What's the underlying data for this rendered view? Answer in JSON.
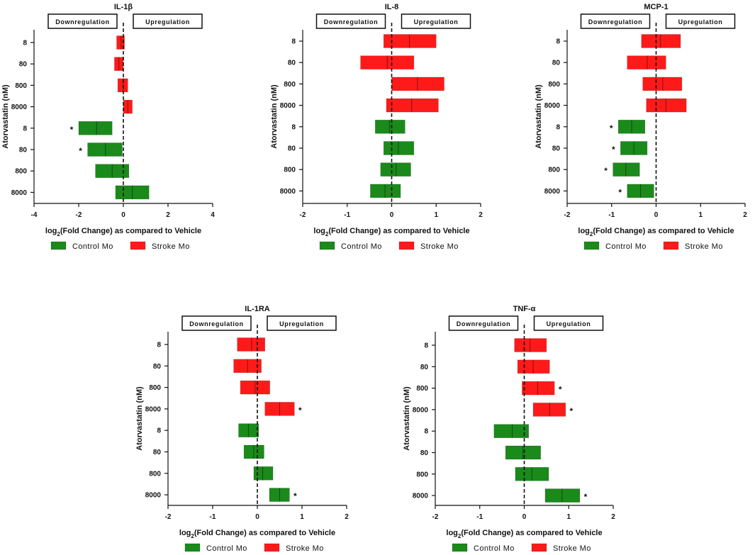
{
  "colors": {
    "control": "#1a8a1a",
    "stroke": "#ff1a1a",
    "axis": "#111111"
  },
  "legend": {
    "control_label": "Control Mo",
    "stroke_label": "Stroke Mo"
  },
  "labels": {
    "ylabel": "Atorvastatin (nM)",
    "xlabel_prefix": "log",
    "xlabel_sub": "2",
    "xlabel_rest": "(Fold Change) as compared to Vehicle",
    "downregulation": "Downregulation",
    "upregulation": "Upregulation"
  },
  "chart_data": [
    {
      "type": "floating-bar",
      "title": "IL-1β",
      "xlim": [
        -4,
        4
      ],
      "xticks": [
        "-4",
        "-2",
        "0",
        "2",
        "4"
      ],
      "xtick_values": [
        -4,
        -2,
        0,
        2,
        4
      ],
      "categories": [
        "8",
        "80",
        "800",
        "8000",
        "8",
        "80",
        "800",
        "8000"
      ],
      "series": [
        {
          "name": "Stroke Mo",
          "rows": [
            {
              "dose": "8",
              "min": -0.3,
              "mean": -0.1,
              "max": 0.05,
              "sig": false
            },
            {
              "dose": "80",
              "min": -0.4,
              "mean": -0.2,
              "max": 0.0,
              "sig": false
            },
            {
              "dose": "800",
              "min": -0.25,
              "mean": 0.0,
              "max": 0.2,
              "sig": false
            },
            {
              "dose": "8000",
              "min": 0.0,
              "mean": 0.2,
              "max": 0.4,
              "sig": false
            }
          ]
        },
        {
          "name": "Control Mo",
          "rows": [
            {
              "dose": "8",
              "min": -2.0,
              "mean": -1.2,
              "max": -0.5,
              "sig": true
            },
            {
              "dose": "80",
              "min": -1.6,
              "mean": -0.8,
              "max": -0.05,
              "sig": true
            },
            {
              "dose": "800",
              "min": -1.25,
              "mean": -0.5,
              "max": 0.25,
              "sig": false
            },
            {
              "dose": "8000",
              "min": -0.35,
              "mean": 0.4,
              "max": 1.15,
              "sig": false
            }
          ]
        }
      ]
    },
    {
      "type": "floating-bar",
      "title": "IL-8",
      "xlim": [
        -2,
        2
      ],
      "xticks": [
        "-2",
        "-1",
        "0",
        "1",
        "2"
      ],
      "xtick_values": [
        -2,
        -1,
        0,
        1,
        2
      ],
      "categories": [
        "8",
        "80",
        "800",
        "8000",
        "8",
        "80",
        "800",
        "8000"
      ],
      "series": [
        {
          "name": "Stroke Mo",
          "rows": [
            {
              "dose": "8",
              "min": -0.18,
              "mean": 0.4,
              "max": 1.0,
              "sig": false
            },
            {
              "dose": "80",
              "min": -0.7,
              "mean": -0.1,
              "max": 0.5,
              "sig": false
            },
            {
              "dose": "800",
              "min": 0.0,
              "mean": 0.58,
              "max": 1.18,
              "sig": false
            },
            {
              "dose": "8000",
              "min": -0.12,
              "mean": 0.45,
              "max": 1.05,
              "sig": false
            }
          ]
        },
        {
          "name": "Control Mo",
          "rows": [
            {
              "dose": "8",
              "min": -0.37,
              "mean": -0.05,
              "max": 0.3,
              "sig": false
            },
            {
              "dose": "80",
              "min": -0.18,
              "mean": 0.15,
              "max": 0.5,
              "sig": false
            },
            {
              "dose": "800",
              "min": -0.25,
              "mean": 0.1,
              "max": 0.43,
              "sig": false
            },
            {
              "dose": "8000",
              "min": -0.48,
              "mean": -0.15,
              "max": 0.2,
              "sig": false
            }
          ]
        }
      ]
    },
    {
      "type": "floating-bar",
      "title": "MCP-1",
      "xlim": [
        -2,
        2
      ],
      "xticks": [
        "-2",
        "-1",
        "0",
        "1",
        "2"
      ],
      "xtick_values": [
        -2,
        -1,
        0,
        1,
        2
      ],
      "categories": [
        "8",
        "80",
        "800",
        "8000",
        "8",
        "80",
        "800",
        "8000"
      ],
      "series": [
        {
          "name": "Stroke Mo",
          "rows": [
            {
              "dose": "8",
              "min": -0.33,
              "mean": 0.1,
              "max": 0.55,
              "sig": false
            },
            {
              "dose": "80",
              "min": -0.65,
              "mean": -0.2,
              "max": 0.22,
              "sig": false
            },
            {
              "dose": "800",
              "min": -0.3,
              "mean": 0.15,
              "max": 0.58,
              "sig": false
            },
            {
              "dose": "8000",
              "min": -0.22,
              "mean": 0.22,
              "max": 0.68,
              "sig": false
            }
          ]
        },
        {
          "name": "Control Mo",
          "rows": [
            {
              "dose": "8",
              "min": -0.85,
              "mean": -0.55,
              "max": -0.25,
              "sig": true
            },
            {
              "dose": "80",
              "min": -0.8,
              "mean": -0.5,
              "max": -0.2,
              "sig": true
            },
            {
              "dose": "800",
              "min": -0.97,
              "mean": -0.68,
              "max": -0.37,
              "sig": true
            },
            {
              "dose": "8000",
              "min": -0.65,
              "mean": -0.35,
              "max": -0.05,
              "sig": true
            }
          ]
        }
      ]
    },
    {
      "type": "floating-bar",
      "title": "IL-1RA",
      "xlim": [
        -2,
        2
      ],
      "xticks": [
        "-2",
        "-1",
        "0",
        "1",
        "2"
      ],
      "xtick_values": [
        -2,
        -1,
        0,
        1,
        2
      ],
      "categories": [
        "8",
        "80",
        "800",
        "8000",
        "8",
        "80",
        "800",
        "8000"
      ],
      "series": [
        {
          "name": "Stroke Mo",
          "rows": [
            {
              "dose": "8",
              "min": -0.45,
              "mean": -0.13,
              "max": 0.17,
              "sig": false
            },
            {
              "dose": "80",
              "min": -0.53,
              "mean": -0.22,
              "max": 0.09,
              "sig": false
            },
            {
              "dose": "800",
              "min": -0.38,
              "mean": -0.05,
              "max": 0.28,
              "sig": false
            },
            {
              "dose": "8000",
              "min": 0.17,
              "mean": 0.5,
              "max": 0.83,
              "sig": true
            }
          ]
        },
        {
          "name": "Control Mo",
          "rows": [
            {
              "dose": "8",
              "min": -0.42,
              "mean": -0.2,
              "max": 0.03,
              "sig": false
            },
            {
              "dose": "80",
              "min": -0.3,
              "mean": -0.08,
              "max": 0.15,
              "sig": false
            },
            {
              "dose": "800",
              "min": -0.08,
              "mean": 0.12,
              "max": 0.35,
              "sig": false
            },
            {
              "dose": "8000",
              "min": 0.27,
              "mean": 0.5,
              "max": 0.72,
              "sig": true
            }
          ]
        }
      ]
    },
    {
      "type": "floating-bar",
      "title": "TNF-α",
      "xlim": [
        -2,
        2
      ],
      "xticks": [
        "-2",
        "-1",
        "0",
        "1",
        "2"
      ],
      "xtick_values": [
        -2,
        -1,
        0,
        1,
        2
      ],
      "categories": [
        "8",
        "80",
        "800",
        "8000",
        "8",
        "80",
        "800",
        "8000"
      ],
      "series": [
        {
          "name": "Stroke Mo",
          "rows": [
            {
              "dose": "8",
              "min": -0.22,
              "mean": 0.13,
              "max": 0.5,
              "sig": false
            },
            {
              "dose": "80",
              "min": -0.15,
              "mean": 0.2,
              "max": 0.57,
              "sig": false
            },
            {
              "dose": "800",
              "min": -0.05,
              "mean": 0.3,
              "max": 0.68,
              "sig": true
            },
            {
              "dose": "8000",
              "min": 0.2,
              "mean": 0.57,
              "max": 0.93,
              "sig": true
            }
          ]
        },
        {
          "name": "Control Mo",
          "rows": [
            {
              "dose": "8",
              "min": -0.68,
              "mean": -0.27,
              "max": 0.1,
              "sig": false
            },
            {
              "dose": "80",
              "min": -0.42,
              "mean": -0.03,
              "max": 0.37,
              "sig": false
            },
            {
              "dose": "800",
              "min": -0.2,
              "mean": 0.17,
              "max": 0.55,
              "sig": false
            },
            {
              "dose": "8000",
              "min": 0.47,
              "mean": 0.85,
              "max": 1.25,
              "sig": true
            }
          ]
        }
      ]
    }
  ]
}
